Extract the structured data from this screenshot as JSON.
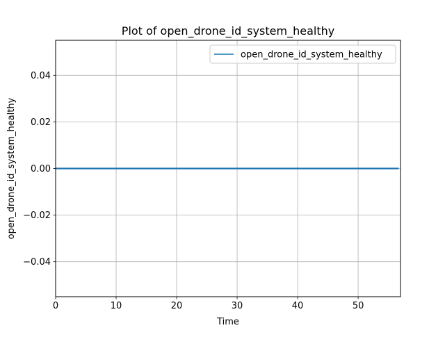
{
  "chart_data": {
    "type": "line",
    "title": "Plot of open_drone_id_system_healthy",
    "xlabel": "Time",
    "ylabel": "open_drone_id_system_healthy",
    "xlim": [
      0,
      57
    ],
    "ylim": [
      -0.055,
      0.055
    ],
    "xticks": [
      0,
      10,
      20,
      30,
      40,
      50
    ],
    "yticks": [
      -0.04,
      -0.02,
      0.0,
      0.02,
      0.04
    ],
    "xtick_labels": [
      "0",
      "10",
      "20",
      "30",
      "40",
      "50"
    ],
    "ytick_labels": [
      "−0.04",
      "−0.02",
      "0.00",
      "0.02",
      "0.04"
    ],
    "grid": true,
    "legend_position": "top-right",
    "series": [
      {
        "name": "open_drone_id_system_healthy",
        "color": "#1f77b4",
        "x": [
          0,
          56.7
        ],
        "y": [
          0,
          0
        ]
      }
    ]
  }
}
